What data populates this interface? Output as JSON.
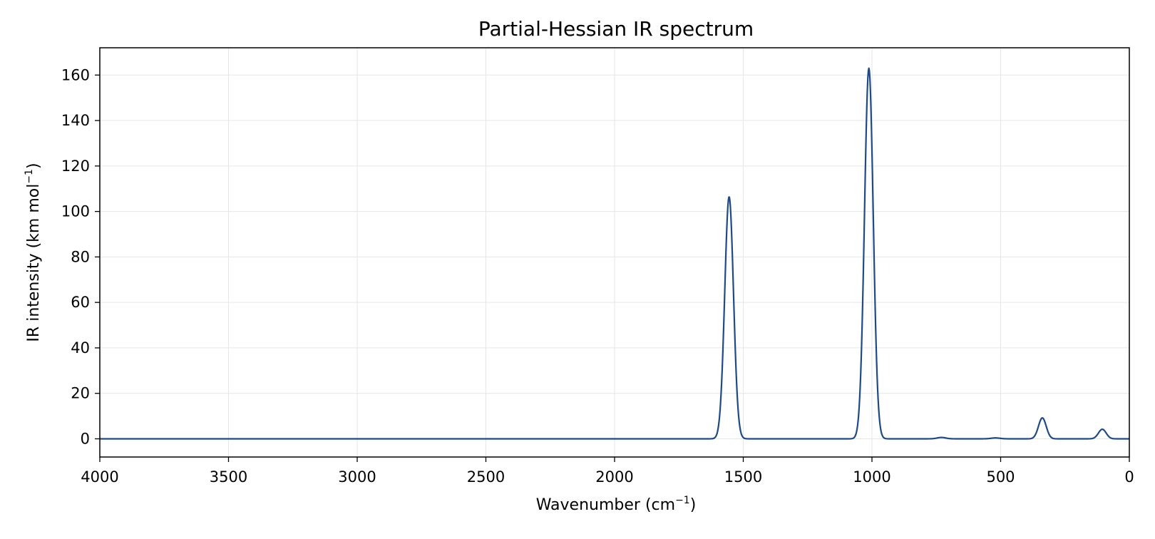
{
  "chart_data": {
    "type": "line",
    "title": "Partial-Hessian IR spectrum",
    "xlabel": {
      "main": "Wavenumber (cm",
      "sup": "−1",
      "close": ")"
    },
    "ylabel": {
      "main": "IR intensity (km mol",
      "sup": "−1",
      "close": ")"
    },
    "xlim": [
      4000,
      0
    ],
    "ylim": [
      -8,
      172
    ],
    "x_ticks": [
      4000,
      3500,
      3000,
      2500,
      2000,
      1500,
      1000,
      500,
      0
    ],
    "y_ticks": [
      0,
      20,
      40,
      60,
      80,
      100,
      120,
      140,
      160
    ],
    "grid": true,
    "line_color": "#1f4a8a",
    "peaks": [
      {
        "center": 1555,
        "height": 106.5,
        "sigma": 17
      },
      {
        "center": 1012,
        "height": 163,
        "sigma": 17
      },
      {
        "center": 730,
        "height": 0.6,
        "sigma": 17
      },
      {
        "center": 520,
        "height": 0.4,
        "sigma": 17
      },
      {
        "center": 338,
        "height": 9.2,
        "sigma": 15
      },
      {
        "center": 105,
        "height": 4.2,
        "sigma": 15
      }
    ]
  }
}
